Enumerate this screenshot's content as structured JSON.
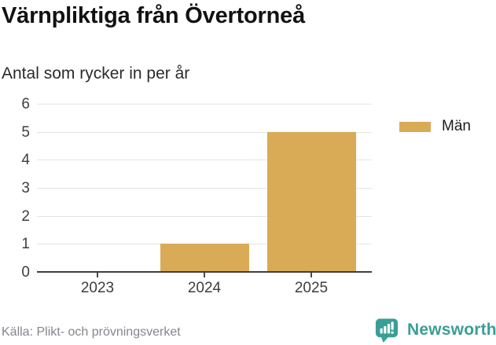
{
  "header": {
    "title": "Värnpliktiga från Övertorneå",
    "subtitle": "Antal som rycker in per år"
  },
  "legend": {
    "items": [
      {
        "label": "Män",
        "color": "#d9ab57"
      }
    ]
  },
  "footer": {
    "source": "Källa: Plikt- och prövningsverket",
    "logo_text": "Newsworthy",
    "logo_color": "#3a9e96",
    "logo_icon": "newsworthy-speech-bubble-chart-icon"
  },
  "colors": {
    "bar": "#d9ab57",
    "gridline": "#e4e4e4",
    "axis_line": "#3f3f3f",
    "tick_label": "#3d3d3d",
    "source_text": "#85858d"
  },
  "chart_data": {
    "type": "bar",
    "title": "Värnpliktiga från Övertorneå",
    "subtitle": "Antal som rycker in per år",
    "categories": [
      "2023",
      "2024",
      "2025"
    ],
    "series": [
      {
        "name": "Män",
        "color": "#d9ab57",
        "values": [
          0,
          1,
          5
        ]
      }
    ],
    "xlabel": "",
    "ylabel": "",
    "ylim": [
      0,
      6
    ],
    "yticks": [
      0,
      1,
      2,
      3,
      4,
      5,
      6
    ],
    "grid": true,
    "legend_position": "right",
    "source": "Källa: Plikt- och prövningsverket"
  }
}
